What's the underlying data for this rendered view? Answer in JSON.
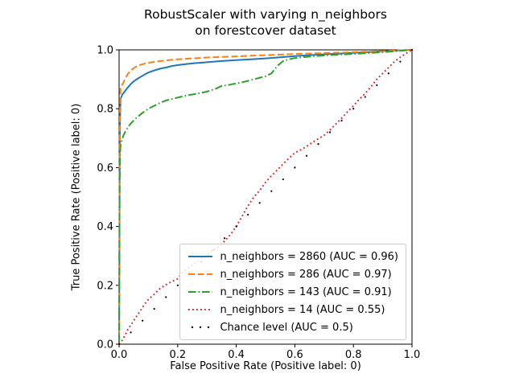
{
  "chart_data": {
    "type": "line",
    "title": "RobustScaler with varying n_neighbors on forestcover dataset",
    "title_lines": [
      "RobustScaler with varying n_neighbors",
      "on forestcover dataset"
    ],
    "xlabel": "False Positive Rate (Positive label: 0)",
    "ylabel": "True Positive Rate (Positive label: 0)",
    "xlim": [
      0,
      1
    ],
    "ylim": [
      0,
      1
    ],
    "grid": false,
    "legend_position": "lower right",
    "xticks": {
      "values": [
        0,
        0.2,
        0.4,
        0.6,
        0.8,
        1.0
      ],
      "labels": [
        "0.0",
        "0.2",
        "0.4",
        "0.6",
        "0.8",
        "1.0"
      ]
    },
    "yticks": {
      "values": [
        0,
        0.2,
        0.4,
        0.6,
        0.8,
        1.0
      ],
      "labels": [
        "0.0",
        "0.2",
        "0.4",
        "0.6",
        "0.8",
        "1.0"
      ]
    },
    "series": [
      {
        "name": "n_neighbors = 2860",
        "auc": 0.96,
        "label": "n_neighbors = 2860 (AUC = 0.96)",
        "color": "#1f77b4",
        "line_style": "solid",
        "points": [
          [
            0,
            0
          ],
          [
            0.001,
            0.3
          ],
          [
            0.002,
            0.62
          ],
          [
            0.003,
            0.75
          ],
          [
            0.004,
            0.8
          ],
          [
            0.005,
            0.835
          ],
          [
            0.008,
            0.84
          ],
          [
            0.01,
            0.845
          ],
          [
            0.012,
            0.85
          ],
          [
            0.015,
            0.853
          ],
          [
            0.02,
            0.86
          ],
          [
            0.025,
            0.866
          ],
          [
            0.03,
            0.872
          ],
          [
            0.035,
            0.878
          ],
          [
            0.04,
            0.884
          ],
          [
            0.05,
            0.893
          ],
          [
            0.06,
            0.9
          ],
          [
            0.07,
            0.906
          ],
          [
            0.08,
            0.912
          ],
          [
            0.09,
            0.918
          ],
          [
            0.1,
            0.923
          ],
          [
            0.12,
            0.93
          ],
          [
            0.14,
            0.936
          ],
          [
            0.16,
            0.94
          ],
          [
            0.18,
            0.945
          ],
          [
            0.2,
            0.948
          ],
          [
            0.23,
            0.952
          ],
          [
            0.26,
            0.955
          ],
          [
            0.3,
            0.958
          ],
          [
            0.35,
            0.962
          ],
          [
            0.4,
            0.965
          ],
          [
            0.45,
            0.968
          ],
          [
            0.5,
            0.971
          ],
          [
            0.55,
            0.975
          ],
          [
            0.6,
            0.979
          ],
          [
            0.65,
            0.982
          ],
          [
            0.7,
            0.985
          ],
          [
            0.75,
            0.987
          ],
          [
            0.8,
            0.99
          ],
          [
            0.85,
            0.992
          ],
          [
            0.9,
            0.995
          ],
          [
            0.95,
            0.998
          ],
          [
            1,
            1
          ]
        ]
      },
      {
        "name": "n_neighbors = 286",
        "auc": 0.97,
        "label": "n_neighbors = 286 (AUC = 0.97)",
        "color": "#ff7f0e",
        "line_style": "dashed",
        "points": [
          [
            0,
            0
          ],
          [
            0.001,
            0.4
          ],
          [
            0.002,
            0.68
          ],
          [
            0.003,
            0.8
          ],
          [
            0.004,
            0.855
          ],
          [
            0.005,
            0.868
          ],
          [
            0.008,
            0.875
          ],
          [
            0.01,
            0.88
          ],
          [
            0.015,
            0.89
          ],
          [
            0.02,
            0.9
          ],
          [
            0.025,
            0.91
          ],
          [
            0.03,
            0.918
          ],
          [
            0.035,
            0.924
          ],
          [
            0.04,
            0.93
          ],
          [
            0.05,
            0.938
          ],
          [
            0.06,
            0.944
          ],
          [
            0.07,
            0.948
          ],
          [
            0.08,
            0.951
          ],
          [
            0.09,
            0.954
          ],
          [
            0.1,
            0.956
          ],
          [
            0.12,
            0.959
          ],
          [
            0.14,
            0.962
          ],
          [
            0.16,
            0.964
          ],
          [
            0.18,
            0.966
          ],
          [
            0.2,
            0.968
          ],
          [
            0.25,
            0.971
          ],
          [
            0.3,
            0.974
          ],
          [
            0.35,
            0.976
          ],
          [
            0.4,
            0.978
          ],
          [
            0.45,
            0.98
          ],
          [
            0.5,
            0.982
          ],
          [
            0.55,
            0.984
          ],
          [
            0.6,
            0.986
          ],
          [
            0.7,
            0.989
          ],
          [
            0.8,
            0.992
          ],
          [
            0.9,
            0.996
          ],
          [
            1,
            1
          ]
        ]
      },
      {
        "name": "n_neighbors = 143",
        "auc": 0.91,
        "label": "n_neighbors = 143 (AUC = 0.91)",
        "color": "#2ca02c",
        "line_style": "dashdot",
        "points": [
          [
            0,
            0
          ],
          [
            0.001,
            0.35
          ],
          [
            0.002,
            0.55
          ],
          [
            0.003,
            0.63
          ],
          [
            0.004,
            0.665
          ],
          [
            0.005,
            0.675
          ],
          [
            0.008,
            0.685
          ],
          [
            0.01,
            0.695
          ],
          [
            0.015,
            0.71
          ],
          [
            0.02,
            0.72
          ],
          [
            0.03,
            0.737
          ],
          [
            0.04,
            0.75
          ],
          [
            0.05,
            0.76
          ],
          [
            0.06,
            0.77
          ],
          [
            0.07,
            0.778
          ],
          [
            0.08,
            0.786
          ],
          [
            0.09,
            0.793
          ],
          [
            0.1,
            0.8
          ],
          [
            0.12,
            0.81
          ],
          [
            0.14,
            0.82
          ],
          [
            0.16,
            0.828
          ],
          [
            0.18,
            0.833
          ],
          [
            0.2,
            0.838
          ],
          [
            0.23,
            0.845
          ],
          [
            0.26,
            0.85
          ],
          [
            0.3,
            0.858
          ],
          [
            0.33,
            0.868
          ],
          [
            0.35,
            0.877
          ],
          [
            0.38,
            0.882
          ],
          [
            0.4,
            0.886
          ],
          [
            0.43,
            0.892
          ],
          [
            0.46,
            0.9
          ],
          [
            0.5,
            0.91
          ],
          [
            0.52,
            0.92
          ],
          [
            0.54,
            0.945
          ],
          [
            0.56,
            0.962
          ],
          [
            0.58,
            0.968
          ],
          [
            0.6,
            0.972
          ],
          [
            0.65,
            0.977
          ],
          [
            0.7,
            0.981
          ],
          [
            0.75,
            0.984
          ],
          [
            0.8,
            0.986
          ],
          [
            0.85,
            0.989
          ],
          [
            0.9,
            0.992
          ],
          [
            0.95,
            0.996
          ],
          [
            1,
            1
          ]
        ]
      },
      {
        "name": "n_neighbors = 14",
        "auc": 0.55,
        "label": "n_neighbors = 14 (AUC = 0.55)",
        "color": "#d62728",
        "line_style": "dotted",
        "points": [
          [
            0,
            0
          ],
          [
            0.01,
            0.012
          ],
          [
            0.02,
            0.03
          ],
          [
            0.03,
            0.05
          ],
          [
            0.04,
            0.065
          ],
          [
            0.05,
            0.08
          ],
          [
            0.06,
            0.095
          ],
          [
            0.07,
            0.11
          ],
          [
            0.08,
            0.125
          ],
          [
            0.09,
            0.14
          ],
          [
            0.1,
            0.152
          ],
          [
            0.12,
            0.17
          ],
          [
            0.14,
            0.19
          ],
          [
            0.16,
            0.202
          ],
          [
            0.18,
            0.213
          ],
          [
            0.2,
            0.222
          ],
          [
            0.22,
            0.247
          ],
          [
            0.24,
            0.262
          ],
          [
            0.26,
            0.275
          ],
          [
            0.28,
            0.29
          ],
          [
            0.3,
            0.302
          ],
          [
            0.32,
            0.318
          ],
          [
            0.34,
            0.332
          ],
          [
            0.36,
            0.35
          ],
          [
            0.38,
            0.372
          ],
          [
            0.4,
            0.4
          ],
          [
            0.42,
            0.435
          ],
          [
            0.44,
            0.47
          ],
          [
            0.46,
            0.5
          ],
          [
            0.48,
            0.522
          ],
          [
            0.5,
            0.55
          ],
          [
            0.52,
            0.572
          ],
          [
            0.54,
            0.592
          ],
          [
            0.56,
            0.612
          ],
          [
            0.58,
            0.632
          ],
          [
            0.6,
            0.65
          ],
          [
            0.62,
            0.66
          ],
          [
            0.64,
            0.672
          ],
          [
            0.66,
            0.685
          ],
          [
            0.68,
            0.698
          ],
          [
            0.7,
            0.71
          ],
          [
            0.72,
            0.728
          ],
          [
            0.74,
            0.748
          ],
          [
            0.76,
            0.768
          ],
          [
            0.78,
            0.79
          ],
          [
            0.8,
            0.81
          ],
          [
            0.82,
            0.832
          ],
          [
            0.84,
            0.852
          ],
          [
            0.86,
            0.875
          ],
          [
            0.88,
            0.9
          ],
          [
            0.9,
            0.92
          ],
          [
            0.92,
            0.94
          ],
          [
            0.94,
            0.96
          ],
          [
            0.96,
            0.975
          ],
          [
            0.98,
            0.988
          ],
          [
            1,
            1
          ]
        ]
      },
      {
        "name": "Chance level",
        "auc": 0.5,
        "label": "Chance level (AUC = 0.5)",
        "color": "#000000",
        "line_style": "dots",
        "points": [
          [
            0,
            0
          ],
          [
            0.04,
            0.04
          ],
          [
            0.08,
            0.08
          ],
          [
            0.12,
            0.12
          ],
          [
            0.16,
            0.16
          ],
          [
            0.2,
            0.2
          ],
          [
            0.24,
            0.24
          ],
          [
            0.28,
            0.28
          ],
          [
            0.32,
            0.32
          ],
          [
            0.36,
            0.36
          ],
          [
            0.4,
            0.4
          ],
          [
            0.44,
            0.44
          ],
          [
            0.48,
            0.48
          ],
          [
            0.52,
            0.52
          ],
          [
            0.56,
            0.56
          ],
          [
            0.6,
            0.6
          ],
          [
            0.64,
            0.64
          ],
          [
            0.68,
            0.68
          ],
          [
            0.72,
            0.72
          ],
          [
            0.76,
            0.76
          ],
          [
            0.8,
            0.8
          ],
          [
            0.84,
            0.84
          ],
          [
            0.88,
            0.88
          ],
          [
            0.92,
            0.92
          ],
          [
            0.96,
            0.96
          ],
          [
            1,
            1
          ]
        ]
      }
    ]
  }
}
